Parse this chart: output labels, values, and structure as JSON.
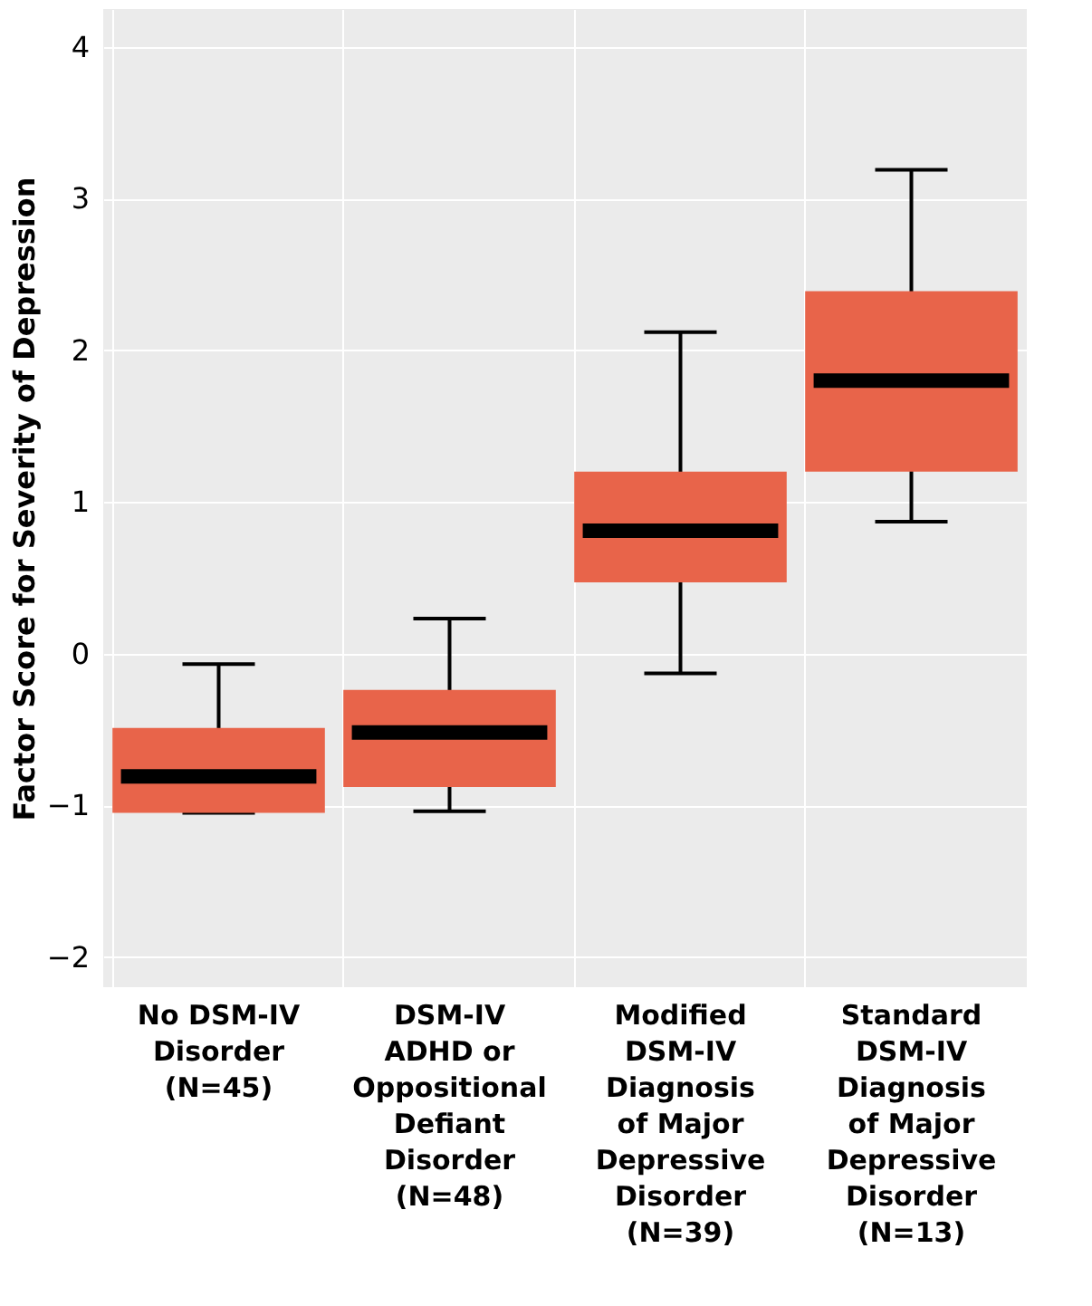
{
  "chart_data": {
    "type": "box",
    "ylabel": "Factor Score for Severity of Depression",
    "categories": [
      "No DSM-IV\nDisorder\n(N=45)",
      "DSM-IV\nADHD or\nOppositional\nDefiant\nDisorder\n(N=48)",
      "Modified\nDSM-IV\nDiagnosis\nof Major\nDepressive\nDisorder\n(N=39)",
      "Standard\nDSM-IV\nDiagnosis\nof Major\nDepressive\nDisorder\n(N=13)"
    ],
    "boxes": [
      {
        "low": -1.05,
        "q1": -1.05,
        "median": -0.81,
        "q3": -0.49,
        "high": -0.07
      },
      {
        "low": -1.04,
        "q1": -0.88,
        "median": -0.52,
        "q3": -0.24,
        "high": 0.23
      },
      {
        "low": -0.13,
        "q1": 0.47,
        "median": 0.81,
        "q3": 1.2,
        "high": 2.12
      },
      {
        "low": 0.87,
        "q1": 1.2,
        "median": 1.8,
        "q3": 2.39,
        "high": 3.19
      }
    ],
    "color": "#e8644a",
    "ylim": [
      -2.2,
      4.25
    ],
    "yticks": [
      {
        "value": -2,
        "label": "−2"
      },
      {
        "value": -1,
        "label": "−1"
      },
      0,
      1,
      2,
      3,
      4
    ],
    "grid": true
  }
}
